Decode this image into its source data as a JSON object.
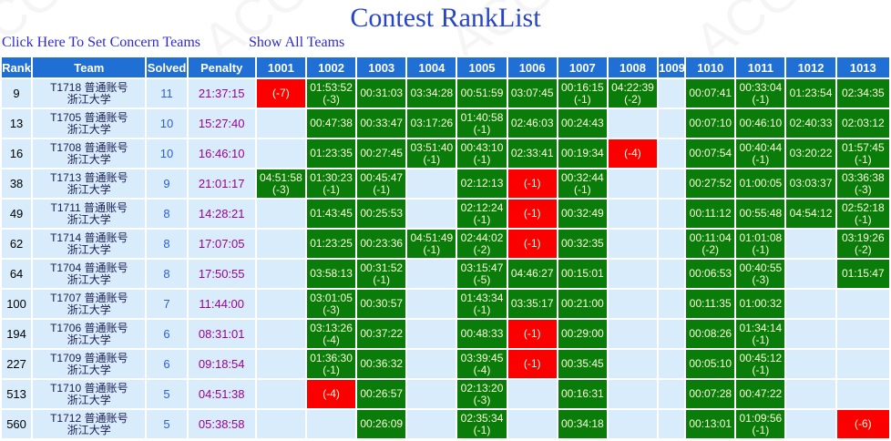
{
  "title": "Contest RankList",
  "watermark": "ACGPC",
  "links": {
    "set_concern": "Click Here To Set Concern Teams",
    "show_all": "Show All Teams"
  },
  "colors": {
    "header_bg": "#1f6fd4",
    "row_bg": "#d8ecfb",
    "accepted_green": "#097c09",
    "failed_red": "#fb0000",
    "title_blue": "#2745cb",
    "link_blue": "#2b2bd5",
    "penalty_purple": "#990099",
    "solved_blue": "#2f5fd0"
  },
  "table": {
    "headers": [
      "Rank",
      "Team",
      "Solved",
      "Penalty",
      "1001",
      "1002",
      "1003",
      "1004",
      "1005",
      "1006",
      "1007",
      "1008",
      "1009",
      "1010",
      "1011",
      "1012",
      "1013"
    ],
    "rows": [
      {
        "rank": "9",
        "team_line1": "T1718 普通账号",
        "team_line2": "浙江大学",
        "solved": "11",
        "penalty": "21:37:15",
        "problems": [
          {
            "status": "fail",
            "tries": "(-7)"
          },
          {
            "status": "ac",
            "time": "01:53:52",
            "tries": "(-3)"
          },
          {
            "status": "ac",
            "time": "00:31:03"
          },
          {
            "status": "ac",
            "time": "03:34:28"
          },
          {
            "status": "ac",
            "time": "00:51:59"
          },
          {
            "status": "ac",
            "time": "03:07:45"
          },
          {
            "status": "ac",
            "time": "00:16:15",
            "tries": "(-1)"
          },
          {
            "status": "ac",
            "time": "04:22:39",
            "tries": "(-2)"
          },
          {
            "status": "none"
          },
          {
            "status": "ac",
            "time": "00:07:41"
          },
          {
            "status": "ac",
            "time": "00:33:04",
            "tries": "(-1)"
          },
          {
            "status": "ac",
            "time": "01:23:54"
          },
          {
            "status": "ac",
            "time": "02:34:35"
          }
        ]
      },
      {
        "rank": "13",
        "team_line1": "T1705 普通账号",
        "team_line2": "浙江大学",
        "solved": "10",
        "penalty": "15:27:40",
        "problems": [
          {
            "status": "none"
          },
          {
            "status": "ac",
            "time": "00:47:38"
          },
          {
            "status": "ac",
            "time": "00:33:47"
          },
          {
            "status": "ac",
            "time": "03:17:26"
          },
          {
            "status": "ac",
            "time": "01:40:58",
            "tries": "(-1)"
          },
          {
            "status": "ac",
            "time": "02:46:03"
          },
          {
            "status": "ac",
            "time": "00:24:43"
          },
          {
            "status": "none"
          },
          {
            "status": "none"
          },
          {
            "status": "ac",
            "time": "00:07:10"
          },
          {
            "status": "ac",
            "time": "00:46:10"
          },
          {
            "status": "ac",
            "time": "02:40:33"
          },
          {
            "status": "ac",
            "time": "02:03:12"
          }
        ]
      },
      {
        "rank": "16",
        "team_line1": "T1708 普通账号",
        "team_line2": "浙江大学",
        "solved": "10",
        "penalty": "16:46:10",
        "problems": [
          {
            "status": "none"
          },
          {
            "status": "ac",
            "time": "01:23:35"
          },
          {
            "status": "ac",
            "time": "00:27:45"
          },
          {
            "status": "ac",
            "time": "03:51:40",
            "tries": "(-1)"
          },
          {
            "status": "ac",
            "time": "00:43:10",
            "tries": "(-1)"
          },
          {
            "status": "ac",
            "time": "02:33:41"
          },
          {
            "status": "ac",
            "time": "00:19:34"
          },
          {
            "status": "fail",
            "tries": "(-4)"
          },
          {
            "status": "none"
          },
          {
            "status": "ac",
            "time": "00:07:54"
          },
          {
            "status": "ac",
            "time": "00:40:44",
            "tries": "(-1)"
          },
          {
            "status": "ac",
            "time": "03:20:22"
          },
          {
            "status": "ac",
            "time": "01:57:45",
            "tries": "(-1)"
          }
        ]
      },
      {
        "rank": "38",
        "team_line1": "T1713 普通账号",
        "team_line2": "浙江大学",
        "solved": "9",
        "penalty": "21:01:17",
        "problems": [
          {
            "status": "ac",
            "time": "04:51:58",
            "tries": "(-3)"
          },
          {
            "status": "ac",
            "time": "01:30:23",
            "tries": "(-1)"
          },
          {
            "status": "ac",
            "time": "00:45:47",
            "tries": "(-1)"
          },
          {
            "status": "none"
          },
          {
            "status": "ac",
            "time": "02:12:13"
          },
          {
            "status": "fail",
            "tries": "(-1)"
          },
          {
            "status": "ac",
            "time": "00:32:44",
            "tries": "(-1)"
          },
          {
            "status": "none"
          },
          {
            "status": "none"
          },
          {
            "status": "ac",
            "time": "00:27:52"
          },
          {
            "status": "ac",
            "time": "01:00:05"
          },
          {
            "status": "ac",
            "time": "03:03:37"
          },
          {
            "status": "ac",
            "time": "03:36:38",
            "tries": "(-3)"
          }
        ]
      },
      {
        "rank": "49",
        "team_line1": "T1711 普通账号",
        "team_line2": "浙江大学",
        "solved": "8",
        "penalty": "14:28:21",
        "problems": [
          {
            "status": "none"
          },
          {
            "status": "ac",
            "time": "01:43:45"
          },
          {
            "status": "ac",
            "time": "00:25:53"
          },
          {
            "status": "none"
          },
          {
            "status": "ac",
            "time": "02:12:24",
            "tries": "(-1)"
          },
          {
            "status": "fail",
            "tries": "(-1)"
          },
          {
            "status": "ac",
            "time": "00:32:49"
          },
          {
            "status": "none"
          },
          {
            "status": "none"
          },
          {
            "status": "ac",
            "time": "00:11:12"
          },
          {
            "status": "ac",
            "time": "00:55:48"
          },
          {
            "status": "ac",
            "time": "04:54:12"
          },
          {
            "status": "ac",
            "time": "02:52:18",
            "tries": "(-1)"
          }
        ]
      },
      {
        "rank": "62",
        "team_line1": "T1714 普通账号",
        "team_line2": "浙江大学",
        "solved": "8",
        "penalty": "17:07:05",
        "problems": [
          {
            "status": "none"
          },
          {
            "status": "ac",
            "time": "01:23:25"
          },
          {
            "status": "ac",
            "time": "00:23:36"
          },
          {
            "status": "ac",
            "time": "04:51:49",
            "tries": "(-1)"
          },
          {
            "status": "ac",
            "time": "02:44:02",
            "tries": "(-2)"
          },
          {
            "status": "fail",
            "tries": "(-1)"
          },
          {
            "status": "ac",
            "time": "00:32:35"
          },
          {
            "status": "none"
          },
          {
            "status": "none"
          },
          {
            "status": "ac",
            "time": "00:11:04",
            "tries": "(-2)"
          },
          {
            "status": "ac",
            "time": "01:01:08",
            "tries": "(-1)"
          },
          {
            "status": "none"
          },
          {
            "status": "ac",
            "time": "03:19:26",
            "tries": "(-2)"
          }
        ]
      },
      {
        "rank": "64",
        "team_line1": "T1704 普通账号",
        "team_line2": "浙江大学",
        "solved": "8",
        "penalty": "17:50:55",
        "problems": [
          {
            "status": "none"
          },
          {
            "status": "ac",
            "time": "03:58:13"
          },
          {
            "status": "ac",
            "time": "00:31:52",
            "tries": "(-1)"
          },
          {
            "status": "none"
          },
          {
            "status": "ac",
            "time": "03:15:47",
            "tries": "(-5)"
          },
          {
            "status": "ac",
            "time": "04:46:27"
          },
          {
            "status": "ac",
            "time": "00:15:01"
          },
          {
            "status": "none"
          },
          {
            "status": "none"
          },
          {
            "status": "ac",
            "time": "00:06:53"
          },
          {
            "status": "ac",
            "time": "00:40:55",
            "tries": "(-3)"
          },
          {
            "status": "none"
          },
          {
            "status": "ac",
            "time": "01:15:47"
          }
        ]
      },
      {
        "rank": "100",
        "team_line1": "T1707 普通账号",
        "team_line2": "浙江大学",
        "solved": "7",
        "penalty": "11:44:00",
        "problems": [
          {
            "status": "none"
          },
          {
            "status": "ac",
            "time": "03:01:05",
            "tries": "(-3)"
          },
          {
            "status": "ac",
            "time": "00:30:57"
          },
          {
            "status": "none"
          },
          {
            "status": "ac",
            "time": "01:43:34",
            "tries": "(-1)"
          },
          {
            "status": "ac",
            "time": "03:35:17"
          },
          {
            "status": "ac",
            "time": "00:21:00"
          },
          {
            "status": "none"
          },
          {
            "status": "none"
          },
          {
            "status": "ac",
            "time": "00:11:35"
          },
          {
            "status": "ac",
            "time": "01:00:32"
          },
          {
            "status": "none"
          },
          {
            "status": "none"
          }
        ]
      },
      {
        "rank": "194",
        "team_line1": "T1706 普通账号",
        "team_line2": "浙江大学",
        "solved": "6",
        "penalty": "08:31:01",
        "problems": [
          {
            "status": "none"
          },
          {
            "status": "ac",
            "time": "03:13:26",
            "tries": "(-4)"
          },
          {
            "status": "ac",
            "time": "00:37:22"
          },
          {
            "status": "none"
          },
          {
            "status": "ac",
            "time": "00:48:33"
          },
          {
            "status": "fail",
            "tries": "(-1)"
          },
          {
            "status": "ac",
            "time": "00:29:00"
          },
          {
            "status": "none"
          },
          {
            "status": "none"
          },
          {
            "status": "ac",
            "time": "00:08:26"
          },
          {
            "status": "ac",
            "time": "01:34:14",
            "tries": "(-1)"
          },
          {
            "status": "none"
          },
          {
            "status": "none"
          }
        ]
      },
      {
        "rank": "227",
        "team_line1": "T1709 普通账号",
        "team_line2": "浙江大学",
        "solved": "6",
        "penalty": "09:18:54",
        "problems": [
          {
            "status": "none"
          },
          {
            "status": "ac",
            "time": "01:36:30",
            "tries": "(-1)"
          },
          {
            "status": "ac",
            "time": "00:36:32"
          },
          {
            "status": "none"
          },
          {
            "status": "ac",
            "time": "03:39:45",
            "tries": "(-4)"
          },
          {
            "status": "fail",
            "tries": "(-1)"
          },
          {
            "status": "ac",
            "time": "00:35:45"
          },
          {
            "status": "none"
          },
          {
            "status": "none"
          },
          {
            "status": "ac",
            "time": "00:05:10"
          },
          {
            "status": "ac",
            "time": "00:45:12",
            "tries": "(-1)"
          },
          {
            "status": "none"
          },
          {
            "status": "none"
          }
        ]
      },
      {
        "rank": "513",
        "team_line1": "T1710 普通账号",
        "team_line2": "浙江大学",
        "solved": "5",
        "penalty": "04:51:38",
        "problems": [
          {
            "status": "none"
          },
          {
            "status": "fail",
            "tries": "(-4)"
          },
          {
            "status": "ac",
            "time": "00:26:57"
          },
          {
            "status": "none"
          },
          {
            "status": "ac",
            "time": "02:13:20",
            "tries": "(-3)"
          },
          {
            "status": "none"
          },
          {
            "status": "ac",
            "time": "00:16:31"
          },
          {
            "status": "none"
          },
          {
            "status": "none"
          },
          {
            "status": "ac",
            "time": "00:07:28"
          },
          {
            "status": "ac",
            "time": "00:47:22"
          },
          {
            "status": "none"
          },
          {
            "status": "none"
          }
        ]
      },
      {
        "rank": "560",
        "team_line1": "T1712 普通账号",
        "team_line2": "浙江大学",
        "solved": "5",
        "penalty": "05:38:58",
        "problems": [
          {
            "status": "none"
          },
          {
            "status": "none"
          },
          {
            "status": "ac",
            "time": "00:26:09"
          },
          {
            "status": "none"
          },
          {
            "status": "ac",
            "time": "02:35:34",
            "tries": "(-1)"
          },
          {
            "status": "none"
          },
          {
            "status": "ac",
            "time": "00:34:18"
          },
          {
            "status": "none"
          },
          {
            "status": "none"
          },
          {
            "status": "ac",
            "time": "00:13:01"
          },
          {
            "status": "ac",
            "time": "01:09:56",
            "tries": "(-1)"
          },
          {
            "status": "none"
          },
          {
            "status": "fail",
            "tries": "(-6)"
          }
        ]
      }
    ]
  }
}
